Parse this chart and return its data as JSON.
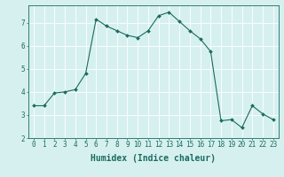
{
  "x": [
    0,
    1,
    2,
    3,
    4,
    5,
    6,
    7,
    8,
    9,
    10,
    11,
    12,
    13,
    14,
    15,
    16,
    17,
    18,
    19,
    20,
    21,
    22,
    23
  ],
  "y": [
    3.4,
    3.4,
    3.95,
    4.0,
    4.1,
    4.8,
    7.15,
    6.85,
    6.65,
    6.45,
    6.35,
    6.65,
    7.3,
    7.45,
    7.05,
    6.65,
    6.3,
    5.75,
    2.75,
    2.8,
    2.45,
    3.4,
    3.05,
    2.8
  ],
  "line_color": "#1a6b5e",
  "marker": "D",
  "marker_size": 2,
  "bg_color": "#d6f0f0",
  "grid_color": "#ffffff",
  "xlabel": "Humidex (Indice chaleur)",
  "xlim": [
    -0.5,
    23.5
  ],
  "ylim": [
    2.0,
    7.75
  ],
  "yticks": [
    2,
    3,
    4,
    5,
    6,
    7
  ],
  "xtick_labels": [
    "0",
    "1",
    "2",
    "3",
    "4",
    "5",
    "6",
    "7",
    "8",
    "9",
    "10",
    "11",
    "12",
    "13",
    "14",
    "15",
    "16",
    "17",
    "18",
    "19",
    "20",
    "21",
    "22",
    "23"
  ],
  "xlabel_fontsize": 7,
  "tick_fontsize": 5.5
}
